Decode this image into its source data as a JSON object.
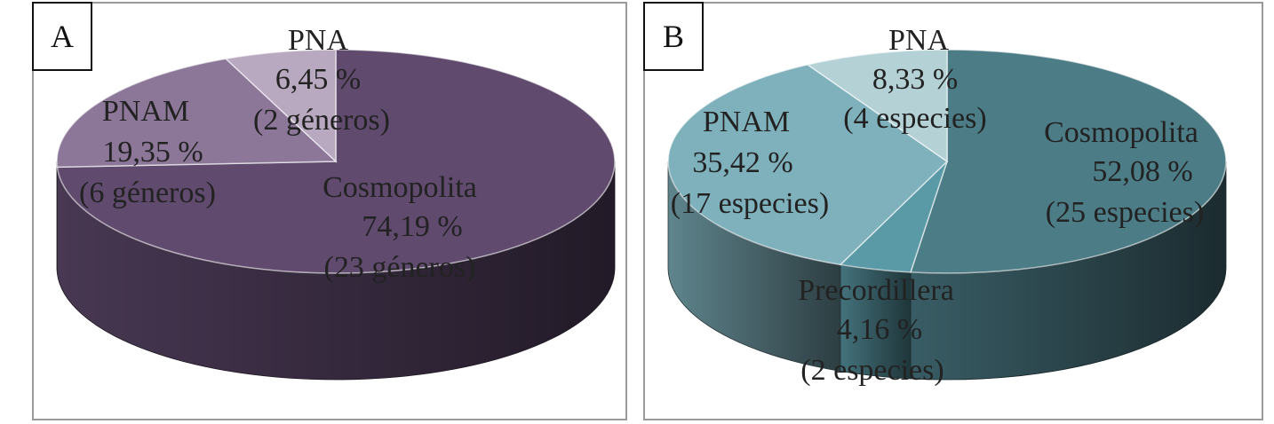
{
  "chart_data": [
    {
      "type": "pie",
      "panel_label": "A",
      "unit": "géneros",
      "slices": [
        {
          "name": "Cosmopolita",
          "percent_label": "74,19 %",
          "count_label": "(23 géneros)",
          "value": 74.19,
          "color": "#604a6e"
        },
        {
          "name": "PNAM",
          "percent_label": "19,35 %",
          "count_label": "(6 géneros)",
          "value": 19.35,
          "color": "#8c7799"
        },
        {
          "name": "PNA",
          "percent_label": "6,45 %",
          "count_label": "(2 géneros)",
          "value": 6.45,
          "color": "#b8a8c0"
        }
      ]
    },
    {
      "type": "pie",
      "panel_label": "B",
      "unit": "especies",
      "slices": [
        {
          "name": "Cosmopolita",
          "percent_label": "52,08 %",
          "count_label": "(25 especies)",
          "value": 52.08,
          "color": "#4c7c86"
        },
        {
          "name": "Precordillera",
          "percent_label": "4,16 %",
          "count_label": "(2 especies)",
          "value": 4.16,
          "color": "#5a99a6"
        },
        {
          "name": "PNAM",
          "percent_label": "35,42 %",
          "count_label": "(17 especies)",
          "value": 35.42,
          "color": "#7fb1bc"
        },
        {
          "name": "PNA",
          "percent_label": "8,33 %",
          "count_label": "(4  especies)",
          "value": 8.33,
          "color": "#b4d1d6"
        }
      ]
    }
  ]
}
